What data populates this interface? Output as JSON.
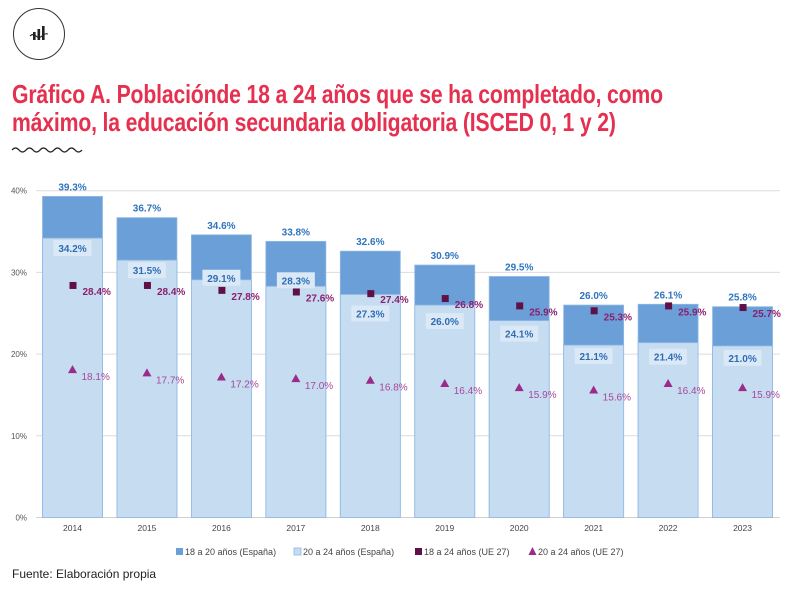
{
  "header": {
    "icon": "chart-trend-icon",
    "title_line1": "Gráfico A. Poblaciónde 18 a 24 años que se ha completado, como",
    "title_line2": "máximo, la educación secundaria obligatoria (ISCED 0, 1 y 2)",
    "title_color": "#e5304f"
  },
  "footer": {
    "source": "Fuente: Elaboración propia"
  },
  "chart_data": {
    "type": "bar",
    "title": "Gráfico A. Poblaciónde 18 a 24 años que se ha completado, como máximo, la educación secundaria obligatoria (ISCED 0, 1 y 2)",
    "xlabel": "",
    "ylabel": "",
    "ylim": [
      0,
      40
    ],
    "ytick_values": [
      0,
      10,
      20,
      30,
      40
    ],
    "ytick_labels": [
      "0%",
      "10%",
      "20%",
      "30%",
      "40%"
    ],
    "grid": true,
    "legend_position": "bottom",
    "categories": [
      "2014",
      "2015",
      "2016",
      "2017",
      "2018",
      "2019",
      "2020",
      "2021",
      "2022",
      "2023"
    ],
    "series": [
      {
        "name": "18 a 20 años (España)",
        "kind": "bar",
        "color": "#6a9fd8",
        "values": [
          39.3,
          36.7,
          34.6,
          33.8,
          32.6,
          30.9,
          29.5,
          26.0,
          26.1,
          25.8
        ],
        "labels": [
          "39.3%",
          "36.7%",
          "34.6%",
          "33.8%",
          "32.6%",
          "30.9%",
          "29.5%",
          "26.0%",
          "26.1%",
          "25.8%"
        ]
      },
      {
        "name": "20 a 24 años (España)",
        "kind": "bar",
        "color": "#c5dcf1",
        "values": [
          34.2,
          31.5,
          29.1,
          28.3,
          27.3,
          26.0,
          24.1,
          21.1,
          21.4,
          21.0
        ],
        "labels": [
          "34.2%",
          "31.5%",
          "29.1%",
          "28.3%",
          "27.3%",
          "26.0%",
          "24.1%",
          "21.1%",
          "21.4%",
          "21.0%"
        ]
      },
      {
        "name": "18 a 24 años (UE 27)",
        "kind": "square-marker",
        "color": "#5f1047",
        "values": [
          28.4,
          28.4,
          27.8,
          27.6,
          27.4,
          26.8,
          25.9,
          25.3,
          25.9,
          25.7
        ],
        "labels": [
          "28.4%",
          "28.4%",
          "27.8%",
          "27.6%",
          "27.4%",
          "26.8%",
          "25.9%",
          "25.3%",
          "25.9%",
          "25.7%"
        ]
      },
      {
        "name": "20 a 24 años (UE 27)",
        "kind": "triangle-marker",
        "color": "#9b2a8a",
        "values": [
          18.1,
          17.7,
          17.2,
          17.0,
          16.8,
          16.4,
          15.9,
          15.6,
          16.4,
          15.9
        ],
        "labels": [
          "18.1%",
          "17.7%",
          "17.2%",
          "17.0%",
          "16.8%",
          "16.4%",
          "15.9%",
          "15.6%",
          "16.4%",
          "15.9%"
        ]
      }
    ]
  }
}
